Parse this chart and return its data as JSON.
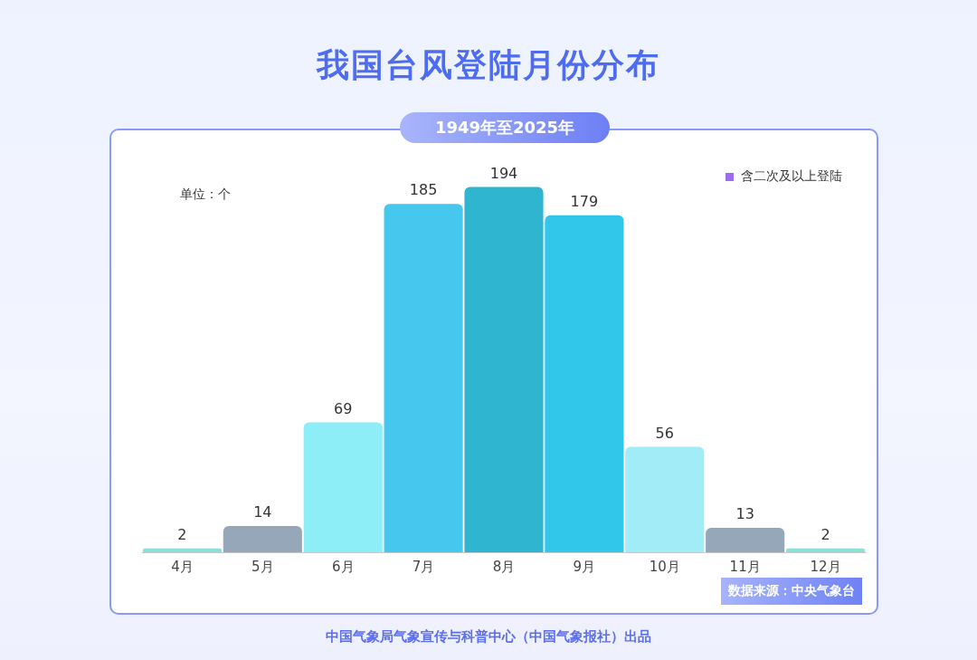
{
  "chart_data": {
    "type": "bar",
    "title": "我国台风登陆月份分布",
    "subtitle": "1949年至2025年",
    "ylabel": "单位：个",
    "categories": [
      "4月",
      "5月",
      "6月",
      "7月",
      "8月",
      "9月",
      "10月",
      "11月",
      "12月"
    ],
    "values": [
      2,
      14,
      69,
      185,
      194,
      179,
      56,
      13,
      2
    ],
    "colors": [
      "#8de0d8",
      "#95a7b9",
      "#8eeef8",
      "#45c7ee",
      "#30b5d0",
      "#30c7eb",
      "#a2ecf8",
      "#95a7b9",
      "#8de0d8"
    ],
    "data_labels": true,
    "grid": false,
    "legend": false,
    "annotations": [
      "含二次及以上登陆",
      "数据来源：中央气象台",
      "中国气象局气象宣传与科普中心（中国气象报社）出品"
    ]
  }
}
